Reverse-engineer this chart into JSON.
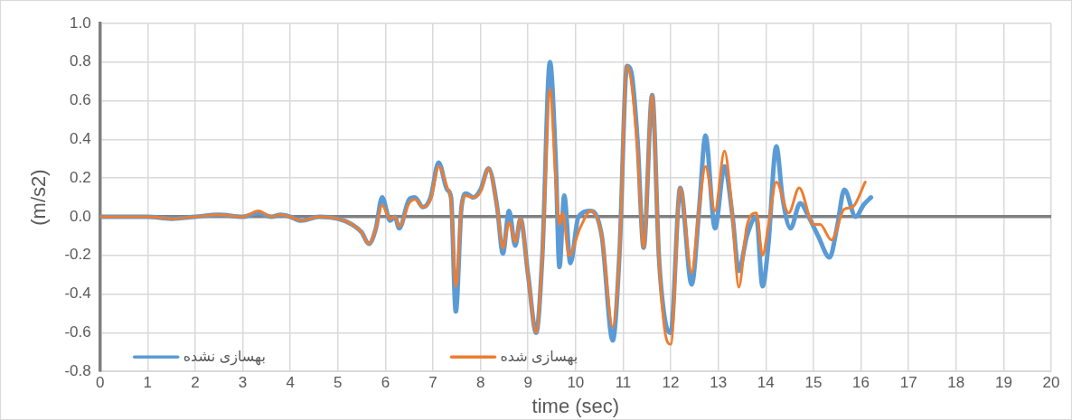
{
  "chart_data": {
    "type": "line",
    "xlabel": "time (sec)",
    "ylabel": "(m/s2)",
    "xlim": [
      0,
      20
    ],
    "xticks": [
      0,
      1,
      2,
      3,
      4,
      5,
      6,
      7,
      8,
      9,
      10,
      11,
      12,
      13,
      14,
      15,
      16,
      17,
      18,
      19,
      20
    ],
    "ylim": [
      -0.8,
      1.0
    ],
    "yticks": [
      {
        "value": -0.8,
        "label": "-0.8"
      },
      {
        "value": -0.6,
        "label": "-0.6"
      },
      {
        "value": -0.4,
        "label": "-0.4"
      },
      {
        "value": -0.2,
        "label": "-0.2"
      },
      {
        "value": 0,
        "label": "0.0"
      },
      {
        "value": 0.2,
        "label": "0.2"
      },
      {
        "value": 0.4,
        "label": "0.4"
      },
      {
        "value": 0.6,
        "label": "0.6"
      },
      {
        "value": 0.8,
        "label": "0.8"
      },
      {
        "value": 1.0,
        "label": "1.0"
      }
    ],
    "grid": true,
    "legend": "bottom",
    "marker": "none",
    "line_style": "solid",
    "series": [
      {
        "name": "بهسازی نشده",
        "color": "#5b9bd5",
        "x": [
          0,
          1,
          1.5,
          2,
          2.5,
          3,
          3.33,
          3.6,
          3.8,
          4,
          4.23,
          4.6,
          5,
          5.3,
          5.5,
          5.65,
          5.8,
          5.93,
          6.1,
          6.2,
          6.29,
          6.5,
          6.62,
          6.79,
          6.95,
          7.12,
          7.3,
          7.38,
          7.48,
          7.6,
          7.7,
          7.85,
          8.0,
          8.17,
          8.35,
          8.47,
          8.6,
          8.73,
          8.84,
          9.0,
          9.17,
          9.3,
          9.46,
          9.58,
          9.66,
          9.76,
          9.89,
          10.06,
          10.32,
          10.55,
          10.78,
          10.92,
          11.08,
          11.17,
          11.3,
          11.43,
          11.61,
          11.75,
          11.87,
          12.0,
          12.2,
          12.44,
          12.6,
          12.73,
          12.93,
          13.13,
          13.3,
          13.43,
          13.6,
          13.8,
          13.93,
          14.05,
          14.22,
          14.35,
          14.52,
          14.72,
          14.9,
          15.1,
          15.34,
          15.5,
          15.65,
          15.89,
          16.05,
          16.21
        ],
        "values": [
          0,
          0,
          -0.01,
          0,
          0.01,
          0,
          0.02,
          0,
          0.01,
          0,
          -0.02,
          0,
          -0.01,
          -0.04,
          -0.08,
          -0.14,
          -0.06,
          0.1,
          -0.02,
          0,
          -0.06,
          0.09,
          0.1,
          0.05,
          0.1,
          0.28,
          0.14,
          0.1,
          -0.49,
          0.05,
          0.12,
          0.1,
          0.14,
          0.25,
          0.05,
          -0.19,
          0.03,
          -0.15,
          -0.01,
          -0.3,
          -0.6,
          -0.2,
          0.8,
          0.3,
          -0.26,
          0.11,
          -0.24,
          0,
          0.03,
          -0.1,
          -0.64,
          -0.2,
          0.78,
          0.75,
          0.4,
          -0.16,
          0.63,
          -0.2,
          -0.52,
          -0.6,
          0.15,
          -0.35,
          0.05,
          0.42,
          -0.06,
          0.26,
          0,
          -0.28,
          -0.1,
          0,
          -0.36,
          -0.15,
          0.365,
          0.1,
          -0.06,
          0.07,
          0,
          -0.1,
          -0.21,
          -0.05,
          0.14,
          0,
          0.06,
          0.1
        ]
      },
      {
        "name": "بهسازی شده",
        "color": "#ed7d31",
        "x": [
          0,
          1,
          1.5,
          2,
          2.5,
          3,
          3.33,
          3.6,
          3.8,
          4,
          4.23,
          4.6,
          5,
          5.3,
          5.5,
          5.65,
          5.8,
          5.93,
          6.1,
          6.2,
          6.29,
          6.5,
          6.62,
          6.79,
          6.95,
          7.12,
          7.3,
          7.38,
          7.48,
          7.6,
          7.67,
          7.85,
          8.0,
          8.17,
          8.35,
          8.47,
          8.6,
          8.73,
          8.84,
          9.0,
          9.17,
          9.3,
          9.46,
          9.58,
          9.66,
          9.73,
          9.86,
          10.09,
          10.32,
          10.55,
          10.78,
          10.92,
          11.08,
          11.17,
          11.3,
          11.43,
          11.61,
          11.75,
          11.87,
          12.0,
          12.2,
          12.44,
          12.6,
          12.73,
          12.93,
          13.13,
          13.3,
          13.43,
          13.6,
          13.8,
          13.93,
          14.05,
          14.22,
          14.48,
          14.7,
          15.0,
          15.14,
          15.38,
          15.65,
          15.82,
          16.09
        ],
        "values": [
          0,
          0,
          -0.01,
          0,
          0.01,
          0,
          0.03,
          0,
          0.01,
          0,
          -0.02,
          0,
          -0.01,
          -0.04,
          -0.08,
          -0.14,
          -0.06,
          0.06,
          -0.01,
          0,
          -0.05,
          0.07,
          0.09,
          0.05,
          0.09,
          0.26,
          0.15,
          0.08,
          -0.36,
          0.05,
          0.11,
          0.1,
          0.13,
          0.25,
          0.05,
          -0.16,
          -0.03,
          -0.13,
          -0.01,
          -0.3,
          -0.6,
          -0.2,
          0.66,
          0.2,
          -0.04,
          0.02,
          -0.2,
          -0.06,
          0.03,
          -0.1,
          -0.57,
          -0.2,
          0.78,
          0.7,
          0.35,
          -0.16,
          0.63,
          -0.2,
          -0.58,
          -0.66,
          0.15,
          -0.29,
          0.05,
          0.26,
          0.03,
          0.34,
          0,
          -0.365,
          -0.05,
          0.02,
          -0.2,
          -0.05,
          0.18,
          0.02,
          0.15,
          -0.04,
          -0.04,
          -0.12,
          0.04,
          0.05,
          0.18
        ]
      }
    ]
  }
}
